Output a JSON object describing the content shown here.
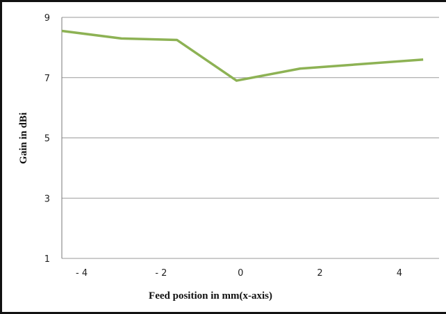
{
  "chart_data": {
    "type": "line",
    "title": "",
    "xlabel": "Feed position in mm(x-axis)",
    "ylabel": "Gain in dBi",
    "x_tick_labels": [
      "- 4",
      "- 2",
      "0",
      "2",
      "4"
    ],
    "x_tick_values": [
      -4,
      -2,
      0,
      2,
      4
    ],
    "y_tick_labels": [
      "1",
      "3",
      "5",
      "7",
      "9"
    ],
    "y_tick_values": [
      1,
      3,
      5,
      7,
      9
    ],
    "xlim": [
      -4.5,
      5.0
    ],
    "ylim": [
      1,
      9
    ],
    "grid": "horizontal",
    "legend": "none",
    "series": [
      {
        "color": "#8db254",
        "x": [
          -4.5,
          -3.0,
          -1.6,
          -0.1,
          1.5,
          4.6
        ],
        "y": [
          8.55,
          8.3,
          8.25,
          6.9,
          7.3,
          7.6
        ]
      }
    ]
  }
}
